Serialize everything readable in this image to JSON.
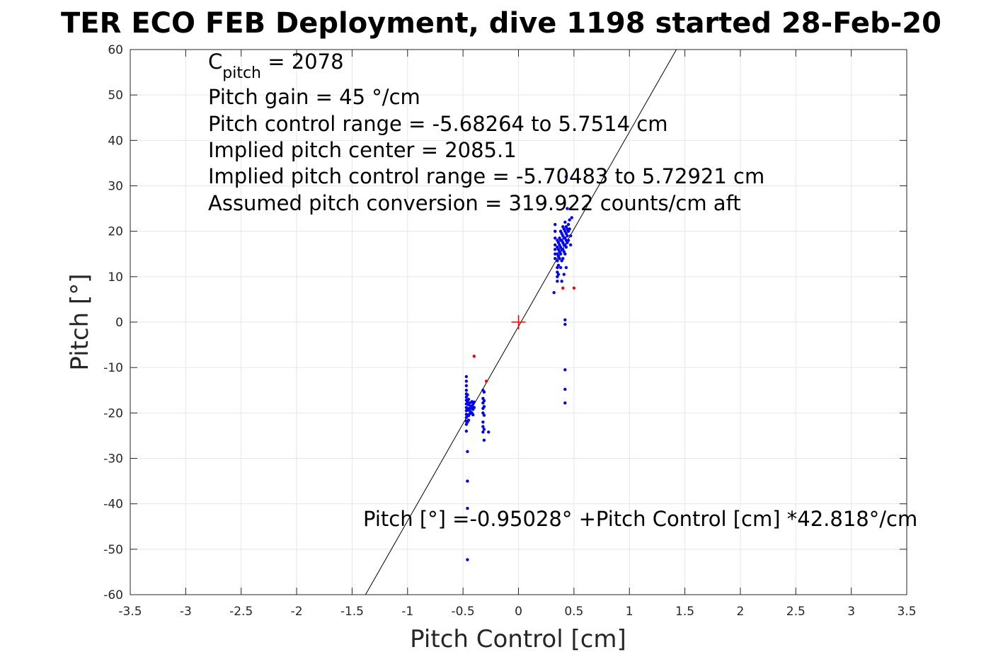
{
  "chart_data": {
    "type": "scatter",
    "title": "TER ECO FEB Deployment, dive 1198 started 28-Feb-20",
    "xlabel": "Pitch Control [cm]",
    "ylabel": "Pitch [°]",
    "xlim": [
      -3.5,
      3.5
    ],
    "ylim": [
      -60,
      60
    ],
    "xticks": [
      "-3.5",
      "-3",
      "-2.5",
      "-2",
      "-1.5",
      "-1",
      "-0.5",
      "0",
      "0.5",
      "1",
      "1.5",
      "2",
      "2.5",
      "3",
      "3.5"
    ],
    "yticks": [
      "60",
      "50",
      "40",
      "30",
      "20",
      "10",
      "0",
      "-10",
      "-20",
      "-30",
      "-40",
      "-50",
      "-60"
    ],
    "grid": true,
    "annotations": {
      "c_pitch_main": "C",
      "c_pitch_sub": "pitch",
      "c_pitch_value": " = 2078",
      "pitch_gain": "Pitch gain = 45 °/cm",
      "control_range": "Pitch control range = -5.68264 to 5.7514 cm",
      "implied_center": "Implied pitch center = 2085.1",
      "implied_range": "Implied pitch control range = -5.70483 to 5.72921 cm",
      "conversion": "Assumed pitch conversion = 319.922 counts/cm aft",
      "fit_equation": "Pitch [°] =-0.95028° +Pitch Control [cm] *42.818°/cm"
    },
    "fit_line": {
      "intercept": -0.95028,
      "slope": 42.818,
      "color": "#000000"
    },
    "center_marker": {
      "x": 0,
      "y": 0,
      "color": "#ff0000"
    },
    "series": [
      {
        "color": "#0000ff",
        "points": [
          [
            -0.47,
            -12.0
          ],
          [
            -0.47,
            -13.0
          ],
          [
            -0.47,
            -14.0
          ],
          [
            -0.47,
            -15.0
          ],
          [
            -0.47,
            -15.8
          ],
          [
            -0.47,
            -16.5
          ],
          [
            -0.47,
            -17.2
          ],
          [
            -0.47,
            -18.0
          ],
          [
            -0.47,
            -18.8
          ],
          [
            -0.47,
            -19.5
          ],
          [
            -0.47,
            -20.3
          ],
          [
            -0.47,
            -21.0
          ],
          [
            -0.47,
            -21.8
          ],
          [
            -0.47,
            -22.5
          ],
          [
            -0.47,
            -24.0
          ],
          [
            -0.46,
            -16.0
          ],
          [
            -0.46,
            -17.5
          ],
          [
            -0.46,
            -19.0
          ],
          [
            -0.46,
            -20.5
          ],
          [
            -0.46,
            -22.0
          ],
          [
            -0.45,
            -17.0
          ],
          [
            -0.45,
            -18.2
          ],
          [
            -0.45,
            -19.4
          ],
          [
            -0.45,
            -20.6
          ],
          [
            -0.45,
            -21.6
          ],
          [
            -0.44,
            -17.8
          ],
          [
            -0.44,
            -19.0
          ],
          [
            -0.44,
            -20.2
          ],
          [
            -0.43,
            -18.5
          ],
          [
            -0.43,
            -19.8
          ],
          [
            -0.42,
            -17.5
          ],
          [
            -0.42,
            -18.6
          ],
          [
            -0.42,
            -20.0
          ],
          [
            -0.41,
            -18.0
          ],
          [
            -0.41,
            -19.2
          ],
          [
            -0.41,
            -20.4
          ],
          [
            -0.4,
            -17.6
          ],
          [
            -0.4,
            -18.8
          ],
          [
            -0.32,
            -15.0
          ],
          [
            -0.32,
            -16.8
          ],
          [
            -0.32,
            -17.8
          ],
          [
            -0.32,
            -19.0
          ],
          [
            -0.32,
            -20.0
          ],
          [
            -0.32,
            -22.0
          ],
          [
            -0.32,
            -23.0
          ],
          [
            -0.32,
            -24.2
          ],
          [
            -0.31,
            -15.4
          ],
          [
            -0.31,
            -17.3
          ],
          [
            -0.31,
            -18.6
          ],
          [
            -0.31,
            -20.5
          ],
          [
            -0.31,
            -23.6
          ],
          [
            -0.31,
            -26.0
          ],
          [
            -0.27,
            -24.2
          ],
          [
            -0.46,
            -28.5
          ],
          [
            -0.46,
            -35.0
          ],
          [
            -0.46,
            -41.0
          ],
          [
            -0.46,
            -52.3
          ],
          [
            0.33,
            21.5
          ],
          [
            0.33,
            20.0
          ],
          [
            0.33,
            18.5
          ],
          [
            0.33,
            17.0
          ],
          [
            0.33,
            16.0
          ],
          [
            0.33,
            15.0
          ],
          [
            0.33,
            14.0
          ],
          [
            0.32,
            6.5
          ],
          [
            0.35,
            18.0
          ],
          [
            0.35,
            16.5
          ],
          [
            0.35,
            15.0
          ],
          [
            0.35,
            13.5
          ],
          [
            0.35,
            12.0
          ],
          [
            0.35,
            11.0
          ],
          [
            0.35,
            10.0
          ],
          [
            0.35,
            9.0
          ],
          [
            0.36,
            17.5
          ],
          [
            0.36,
            16.0
          ],
          [
            0.36,
            14.5
          ],
          [
            0.36,
            12.5
          ],
          [
            0.36,
            10.5
          ],
          [
            0.37,
            18.5
          ],
          [
            0.37,
            17.0
          ],
          [
            0.37,
            15.5
          ],
          [
            0.37,
            14.0
          ],
          [
            0.38,
            20.0
          ],
          [
            0.38,
            18.0
          ],
          [
            0.38,
            16.5
          ],
          [
            0.38,
            15.0
          ],
          [
            0.38,
            12.0
          ],
          [
            0.39,
            19.5
          ],
          [
            0.39,
            18.0
          ],
          [
            0.39,
            16.0
          ],
          [
            0.39,
            13.5
          ],
          [
            0.39,
            9.0
          ],
          [
            0.4,
            21.0
          ],
          [
            0.4,
            19.0
          ],
          [
            0.4,
            17.5
          ],
          [
            0.4,
            16.0
          ],
          [
            0.4,
            14.0
          ],
          [
            0.41,
            20.5
          ],
          [
            0.41,
            18.5
          ],
          [
            0.41,
            17.0
          ],
          [
            0.41,
            15.5
          ],
          [
            0.41,
            10.5
          ],
          [
            0.42,
            22.0
          ],
          [
            0.42,
            20.0
          ],
          [
            0.42,
            18.5
          ],
          [
            0.42,
            17.0
          ],
          [
            0.42,
            15.0
          ],
          [
            0.43,
            21.0
          ],
          [
            0.43,
            19.5
          ],
          [
            0.43,
            18.0
          ],
          [
            0.43,
            16.5
          ],
          [
            0.43,
            12.0
          ],
          [
            0.44,
            20.5
          ],
          [
            0.44,
            19.0
          ],
          [
            0.44,
            17.5
          ],
          [
            0.44,
            25.0
          ],
          [
            0.45,
            21.5
          ],
          [
            0.45,
            20.0
          ],
          [
            0.45,
            18.0
          ],
          [
            0.46,
            22.5
          ],
          [
            0.46,
            20.5
          ],
          [
            0.47,
            19.0
          ],
          [
            0.47,
            17.0
          ],
          [
            0.48,
            23.0
          ],
          [
            0.42,
            0.5
          ],
          [
            0.42,
            -0.5
          ],
          [
            0.42,
            -10.5
          ],
          [
            0.42,
            -14.8
          ],
          [
            0.42,
            -17.8
          ],
          [
            0.43,
            32.0
          ]
        ]
      },
      {
        "color": "#ff0000",
        "points": [
          [
            -0.4,
            -7.5
          ],
          [
            -0.29,
            -13.0
          ],
          [
            0.4,
            7.5
          ],
          [
            0.5,
            7.5
          ]
        ]
      }
    ]
  }
}
